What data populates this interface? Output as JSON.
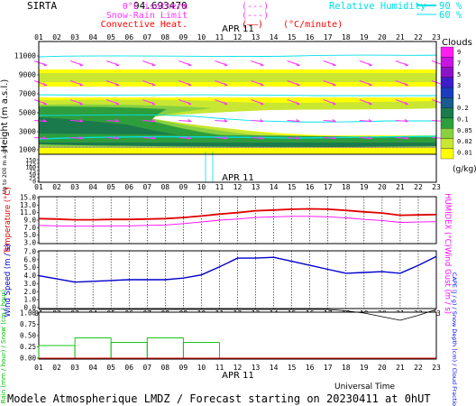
{
  "header": {
    "station": "SIRTA",
    "lon": "94.693470",
    "legend": [
      {
        "label": "0°C isotherm",
        "sample": "(---)",
        "color": "#ff33ff"
      },
      {
        "label": "Snow-Rain Limit",
        "sample": "(---)",
        "color": "#ff33ff"
      },
      {
        "label": "Convective Heat.",
        "sample": "(——)",
        "unit": "(°C/minute)",
        "color": "#ff0000"
      }
    ],
    "rh_legend": {
      "label": "Relative Humidity",
      "v1": "90 %",
      "v2": "60 %",
      "color": "#00e0e8"
    }
  },
  "hours": [
    "01",
    "02",
    "03",
    "04",
    "05",
    "06",
    "07",
    "08",
    "09",
    "10",
    "11",
    "12",
    "13",
    "14",
    "15",
    "16",
    "17",
    "18",
    "19",
    "20",
    "21",
    "22",
    "23"
  ],
  "date_label": "APR 11",
  "footer": {
    "universal_time": "Universal Time",
    "title": "Modele Atmospherique LMDZ / Forecast starting on 20230411 at 0hUT"
  },
  "colors": {
    "clouds": [
      "#ffffff",
      "#ffff00",
      "#c8e632",
      "#88d040",
      "#2e9e3c",
      "#1b7a4c",
      "#1a5c8c",
      "#1b3cbe",
      "#3c1ec8",
      "#8c14c8",
      "#c814e0",
      "#ff1ef0"
    ],
    "temp": "#e00000",
    "humidex": "#ff00ff",
    "wind": "#0000cc",
    "rain": "#00c000",
    "snow": "#0000ff",
    "cape": "#e00000",
    "frame": "#000000",
    "rh": "#00e0e8",
    "wind_arrow": "#ff33ff"
  },
  "chart_data": [
    {
      "type": "heatmap",
      "title": "Clouds (g/kg)",
      "ylabel": "Height (m a.s.l.)",
      "ylabel2": "Up to 200 m a.g.l.",
      "y_ticks": [
        "11000",
        "9000",
        "7000",
        "5000",
        "3000",
        "1000",
        "150",
        "125",
        "100",
        "75",
        "50",
        "25",
        "0"
      ],
      "colorbar": {
        "label": "Clouds",
        "unit": "(g/kg)",
        "ticks": [
          "9",
          "7",
          "5",
          "3",
          "1",
          "0.2",
          "0.1",
          "0.05",
          "0.02",
          "0.01"
        ]
      },
      "rh_contours": [
        "90",
        "60"
      ],
      "layers_bottom_to_top": [
        {
          "name": "low",
          "height_m": [
            600,
            2500
          ],
          "level": "max"
        },
        {
          "name": "mid",
          "height_m": [
            2500,
            5800
          ],
          "level": "high"
        },
        {
          "name": "upper",
          "height_m": [
            7500,
            9500
          ],
          "level": "low"
        }
      ]
    },
    {
      "type": "line",
      "ylabel": "Temperature (°C)",
      "ylabel2": "HUMIDEX (°C)",
      "y_ticks": [
        "15.0",
        "13.0",
        "11.0",
        "9.0",
        "7.0",
        "5.0",
        "3.0"
      ],
      "ylim": [
        3,
        15
      ],
      "series": [
        {
          "name": "Temperature",
          "values": [
            9.4,
            9.3,
            9.1,
            9.1,
            9.2,
            9.2,
            9.3,
            9.4,
            9.7,
            10.1,
            10.6,
            11.0,
            11.5,
            11.7,
            11.9,
            12.0,
            11.9,
            11.6,
            11.2,
            10.9,
            10.3,
            10.4,
            10.5
          ]
        },
        {
          "name": "HUMIDEX",
          "values": [
            7.6,
            7.5,
            7.4,
            7.4,
            7.5,
            7.5,
            7.6,
            7.7,
            8.1,
            8.5,
            9.0,
            9.3,
            9.7,
            9.9,
            10.0,
            10.0,
            9.9,
            9.6,
            9.2,
            8.9,
            8.4,
            8.5,
            8.6
          ]
        }
      ]
    },
    {
      "type": "line",
      "ylabel": "Wind Speed (m / s)",
      "ylabel2": "Wind Gust (m / s)",
      "y_ticks": [
        "7.0",
        "6.0",
        "5.0",
        "4.0",
        "3.0",
        "2.0",
        "1.0",
        "0.0"
      ],
      "ylim": [
        0,
        7
      ],
      "series": [
        {
          "name": "Wind Speed",
          "values": [
            4.0,
            3.6,
            3.2,
            3.3,
            3.4,
            3.5,
            3.5,
            3.5,
            3.7,
            4.1,
            5.1,
            6.2,
            6.2,
            6.3,
            5.8,
            5.3,
            4.8,
            4.3,
            4.4,
            4.5,
            4.3,
            5.3,
            6.4
          ]
        }
      ]
    },
    {
      "type": "bar",
      "ylabel": "Rain (mm / hour) / Snow (cm / hour)",
      "ylabel2": "CAPE (J / g) / Snow Depth (cm) / Cloud Fraction",
      "y_ticks": [
        "1.00",
        "0.75",
        "0.50",
        "0.25",
        "0.00"
      ],
      "ylim": [
        0,
        1
      ],
      "series": [
        {
          "name": "Rain",
          "values": [
            0.28,
            0.28,
            0.45,
            0.45,
            0.35,
            0.35,
            0.45,
            0.45,
            0.35,
            0.35,
            0.0,
            0.0,
            0.0,
            0.0,
            0.0,
            0.0,
            0.0,
            0.0,
            0.0,
            0.0,
            0.0,
            0.0,
            0.0
          ]
        },
        {
          "name": "Cloud Fraction",
          "values": [
            1.1,
            1.1,
            1.1,
            1.1,
            1.1,
            1.1,
            1.1,
            1.1,
            1.1,
            1.1,
            1.1,
            1.1,
            1.1,
            1.1,
            1.1,
            1.1,
            1.1,
            1.05,
            1.0,
            0.92,
            0.84,
            0.95,
            1.1
          ]
        }
      ]
    }
  ]
}
